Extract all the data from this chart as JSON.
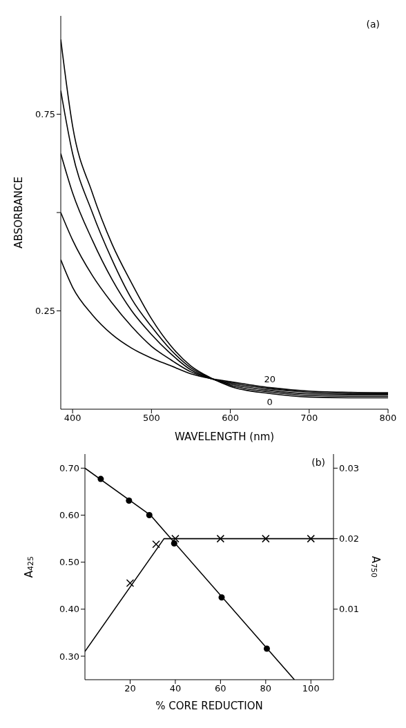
{
  "chart_data": [
    {
      "type": "line",
      "xlabel": "WAVELENGTH (nm)",
      "ylabel": "ABSORBANCE",
      "annotations": [
        "(a)"
      ],
      "x": [
        385,
        400,
        425,
        450,
        475,
        500,
        525,
        550,
        575,
        600,
        650,
        700,
        750,
        800
      ],
      "series": [
        {
          "name": "0",
          "color": "#000000",
          "values": [
            0.94,
            0.72,
            0.55,
            0.42,
            0.32,
            0.23,
            0.16,
            0.11,
            0.08,
            0.058,
            0.04,
            0.031,
            0.029,
            0.029
          ]
        },
        {
          "color": "#000000",
          "values": [
            0.81,
            0.65,
            0.5,
            0.38,
            0.28,
            0.21,
            0.15,
            0.105,
            0.079,
            0.061,
            0.044,
            0.035,
            0.033,
            0.033
          ]
        },
        {
          "color": "#000000",
          "values": [
            0.65,
            0.55,
            0.43,
            0.33,
            0.25,
            0.19,
            0.14,
            0.1,
            0.078,
            0.064,
            0.048,
            0.039,
            0.037,
            0.037
          ]
        },
        {
          "color": "#000000",
          "values": [
            0.5,
            0.43,
            0.34,
            0.27,
            0.21,
            0.16,
            0.125,
            0.095,
            0.078,
            0.067,
            0.052,
            0.043,
            0.04,
            0.04
          ]
        },
        {
          "name": "20",
          "color": "#000000",
          "values": [
            0.38,
            0.31,
            0.24,
            0.19,
            0.155,
            0.13,
            0.11,
            0.09,
            0.078,
            0.07,
            0.055,
            0.046,
            0.043,
            0.042
          ]
        }
      ],
      "xlim": [
        385,
        800
      ],
      "xticks": [
        400,
        500,
        600,
        700,
        800
      ],
      "ylim": [
        0,
        1
      ],
      "yticks": [
        0.25,
        {
          "value": 0.5,
          "label": null
        },
        0.75
      ],
      "line_style": "solid"
    },
    {
      "type": "line",
      "xlabel": "% CORE REDUCTION",
      "ylabel": "A$_{425}$",
      "y2label": "A$_{750}$",
      "annotations": [
        "(b)"
      ],
      "series": [
        {
          "type": "scatter",
          "marker": "circle",
          "color": "#000000",
          "x": [
            7,
            19.5,
            28.5,
            39.5,
            60.5,
            80.5
          ],
          "values": [
            0.677,
            0.631,
            0.6,
            0.54,
            0.425,
            0.316
          ]
        },
        {
          "marker": "none",
          "color": "#000000",
          "x": [
            0,
            29,
            92.7
          ],
          "values": [
            0.7,
            0.6,
            0.25
          ]
        },
        {
          "type": "scatter",
          "marker": "cross",
          "axis": "y2",
          "color": "#000000",
          "x": [
            20,
            31.5,
            40,
            60,
            80,
            100
          ],
          "values": [
            0.0137,
            0.0192,
            0.02,
            0.02,
            0.02,
            0.02
          ]
        },
        {
          "marker": "none",
          "axis": "y2",
          "color": "#000000",
          "x": [
            0,
            35,
            110
          ],
          "values": [
            0.004,
            0.02,
            0.02
          ]
        }
      ],
      "xlim": [
        0,
        110
      ],
      "xticks": [
        20,
        40,
        60,
        80,
        100
      ],
      "ylim": [
        0.25,
        0.73
      ],
      "yticks": [
        {
          "value": 0.3,
          "label": "0.30"
        },
        {
          "value": 0.4,
          "label": "0.40"
        },
        {
          "value": 0.5,
          "label": "0.50"
        },
        {
          "value": 0.6,
          "label": "0.60"
        },
        {
          "value": 0.7,
          "label": "0.70"
        }
      ],
      "y2lim": [
        0,
        0.032
      ],
      "y2ticks": [
        0.01,
        0.02,
        0.03
      ],
      "line_style": "solid"
    }
  ]
}
